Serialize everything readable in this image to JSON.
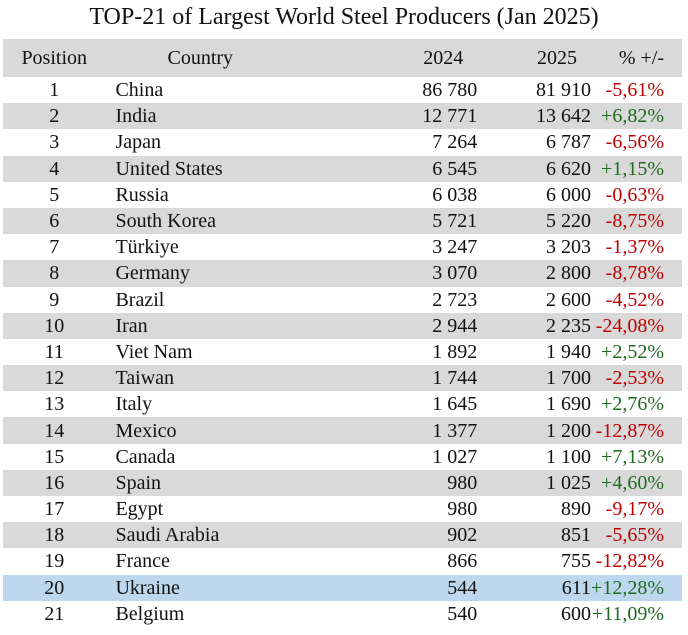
{
  "title": "TOP-21 of Largest World Steel Producers (Jan 2025)",
  "colors": {
    "header_bg": "#d9d9d9",
    "stripe_bg": "#d9d9d9",
    "highlight_bg": "#bdd7ee",
    "negative": "#c00000",
    "positive": "#1e6b1e"
  },
  "table": {
    "columns": [
      "Position",
      "Country",
      "2024",
      "2025",
      "% +/-"
    ],
    "rows": [
      {
        "position": "1",
        "country": "China",
        "y2024": "86 780",
        "y2025": "81 910",
        "change": "-5,61%",
        "trend": "neg"
      },
      {
        "position": "2",
        "country": "India",
        "y2024": "12 771",
        "y2025": "13 642",
        "change": "+6,82%",
        "trend": "pos"
      },
      {
        "position": "3",
        "country": "Japan",
        "y2024": "7 264",
        "y2025": "6 787",
        "change": "-6,56%",
        "trend": "neg"
      },
      {
        "position": "4",
        "country": "United States",
        "y2024": "6 545",
        "y2025": "6 620",
        "change": "+1,15%",
        "trend": "pos"
      },
      {
        "position": "5",
        "country": "Russia",
        "y2024": "6 038",
        "y2025": "6 000",
        "change": "-0,63%",
        "trend": "neg"
      },
      {
        "position": "6",
        "country": "South Korea",
        "y2024": "5 721",
        "y2025": "5 220",
        "change": "-8,75%",
        "trend": "neg"
      },
      {
        "position": "7",
        "country": "Türkiye",
        "y2024": "3 247",
        "y2025": "3 203",
        "change": "-1,37%",
        "trend": "neg"
      },
      {
        "position": "8",
        "country": "Germany",
        "y2024": "3 070",
        "y2025": "2 800",
        "change": "-8,78%",
        "trend": "neg"
      },
      {
        "position": "9",
        "country": "Brazil",
        "y2024": "2 723",
        "y2025": "2 600",
        "change": "-4,52%",
        "trend": "neg"
      },
      {
        "position": "10",
        "country": "Iran",
        "y2024": "2 944",
        "y2025": "2 235",
        "change": "-24,08%",
        "trend": "neg"
      },
      {
        "position": "11",
        "country": "Viet Nam",
        "y2024": "1 892",
        "y2025": "1 940",
        "change": "+2,52%",
        "trend": "pos"
      },
      {
        "position": "12",
        "country": "Taiwan",
        "y2024": "1 744",
        "y2025": "1 700",
        "change": "-2,53%",
        "trend": "neg"
      },
      {
        "position": "13",
        "country": "Italy",
        "y2024": "1 645",
        "y2025": "1 690",
        "change": "+2,76%",
        "trend": "pos"
      },
      {
        "position": "14",
        "country": "Mexico",
        "y2024": "1 377",
        "y2025": "1 200",
        "change": "-12,87%",
        "trend": "neg"
      },
      {
        "position": "15",
        "country": "Canada",
        "y2024": "1 027",
        "y2025": "1 100",
        "change": "+7,13%",
        "trend": "pos"
      },
      {
        "position": "16",
        "country": "Spain",
        "y2024": "980",
        "y2025": "1 025",
        "change": "+4,60%",
        "trend": "pos"
      },
      {
        "position": "17",
        "country": "Egypt",
        "y2024": "980",
        "y2025": "890",
        "change": "-9,17%",
        "trend": "neg"
      },
      {
        "position": "18",
        "country": "Saudi Arabia",
        "y2024": "902",
        "y2025": "851",
        "change": "-5,65%",
        "trend": "neg"
      },
      {
        "position": "19",
        "country": "France",
        "y2024": "866",
        "y2025": "755",
        "change": "-12,82%",
        "trend": "neg"
      },
      {
        "position": "20",
        "country": "Ukraine",
        "y2024": "544",
        "y2025": "611",
        "change": "+12,28%",
        "trend": "pos",
        "highlighted": true
      },
      {
        "position": "21",
        "country": "Belgium",
        "y2024": "540",
        "y2025": "600",
        "change": "+11,09%",
        "trend": "pos"
      }
    ]
  }
}
